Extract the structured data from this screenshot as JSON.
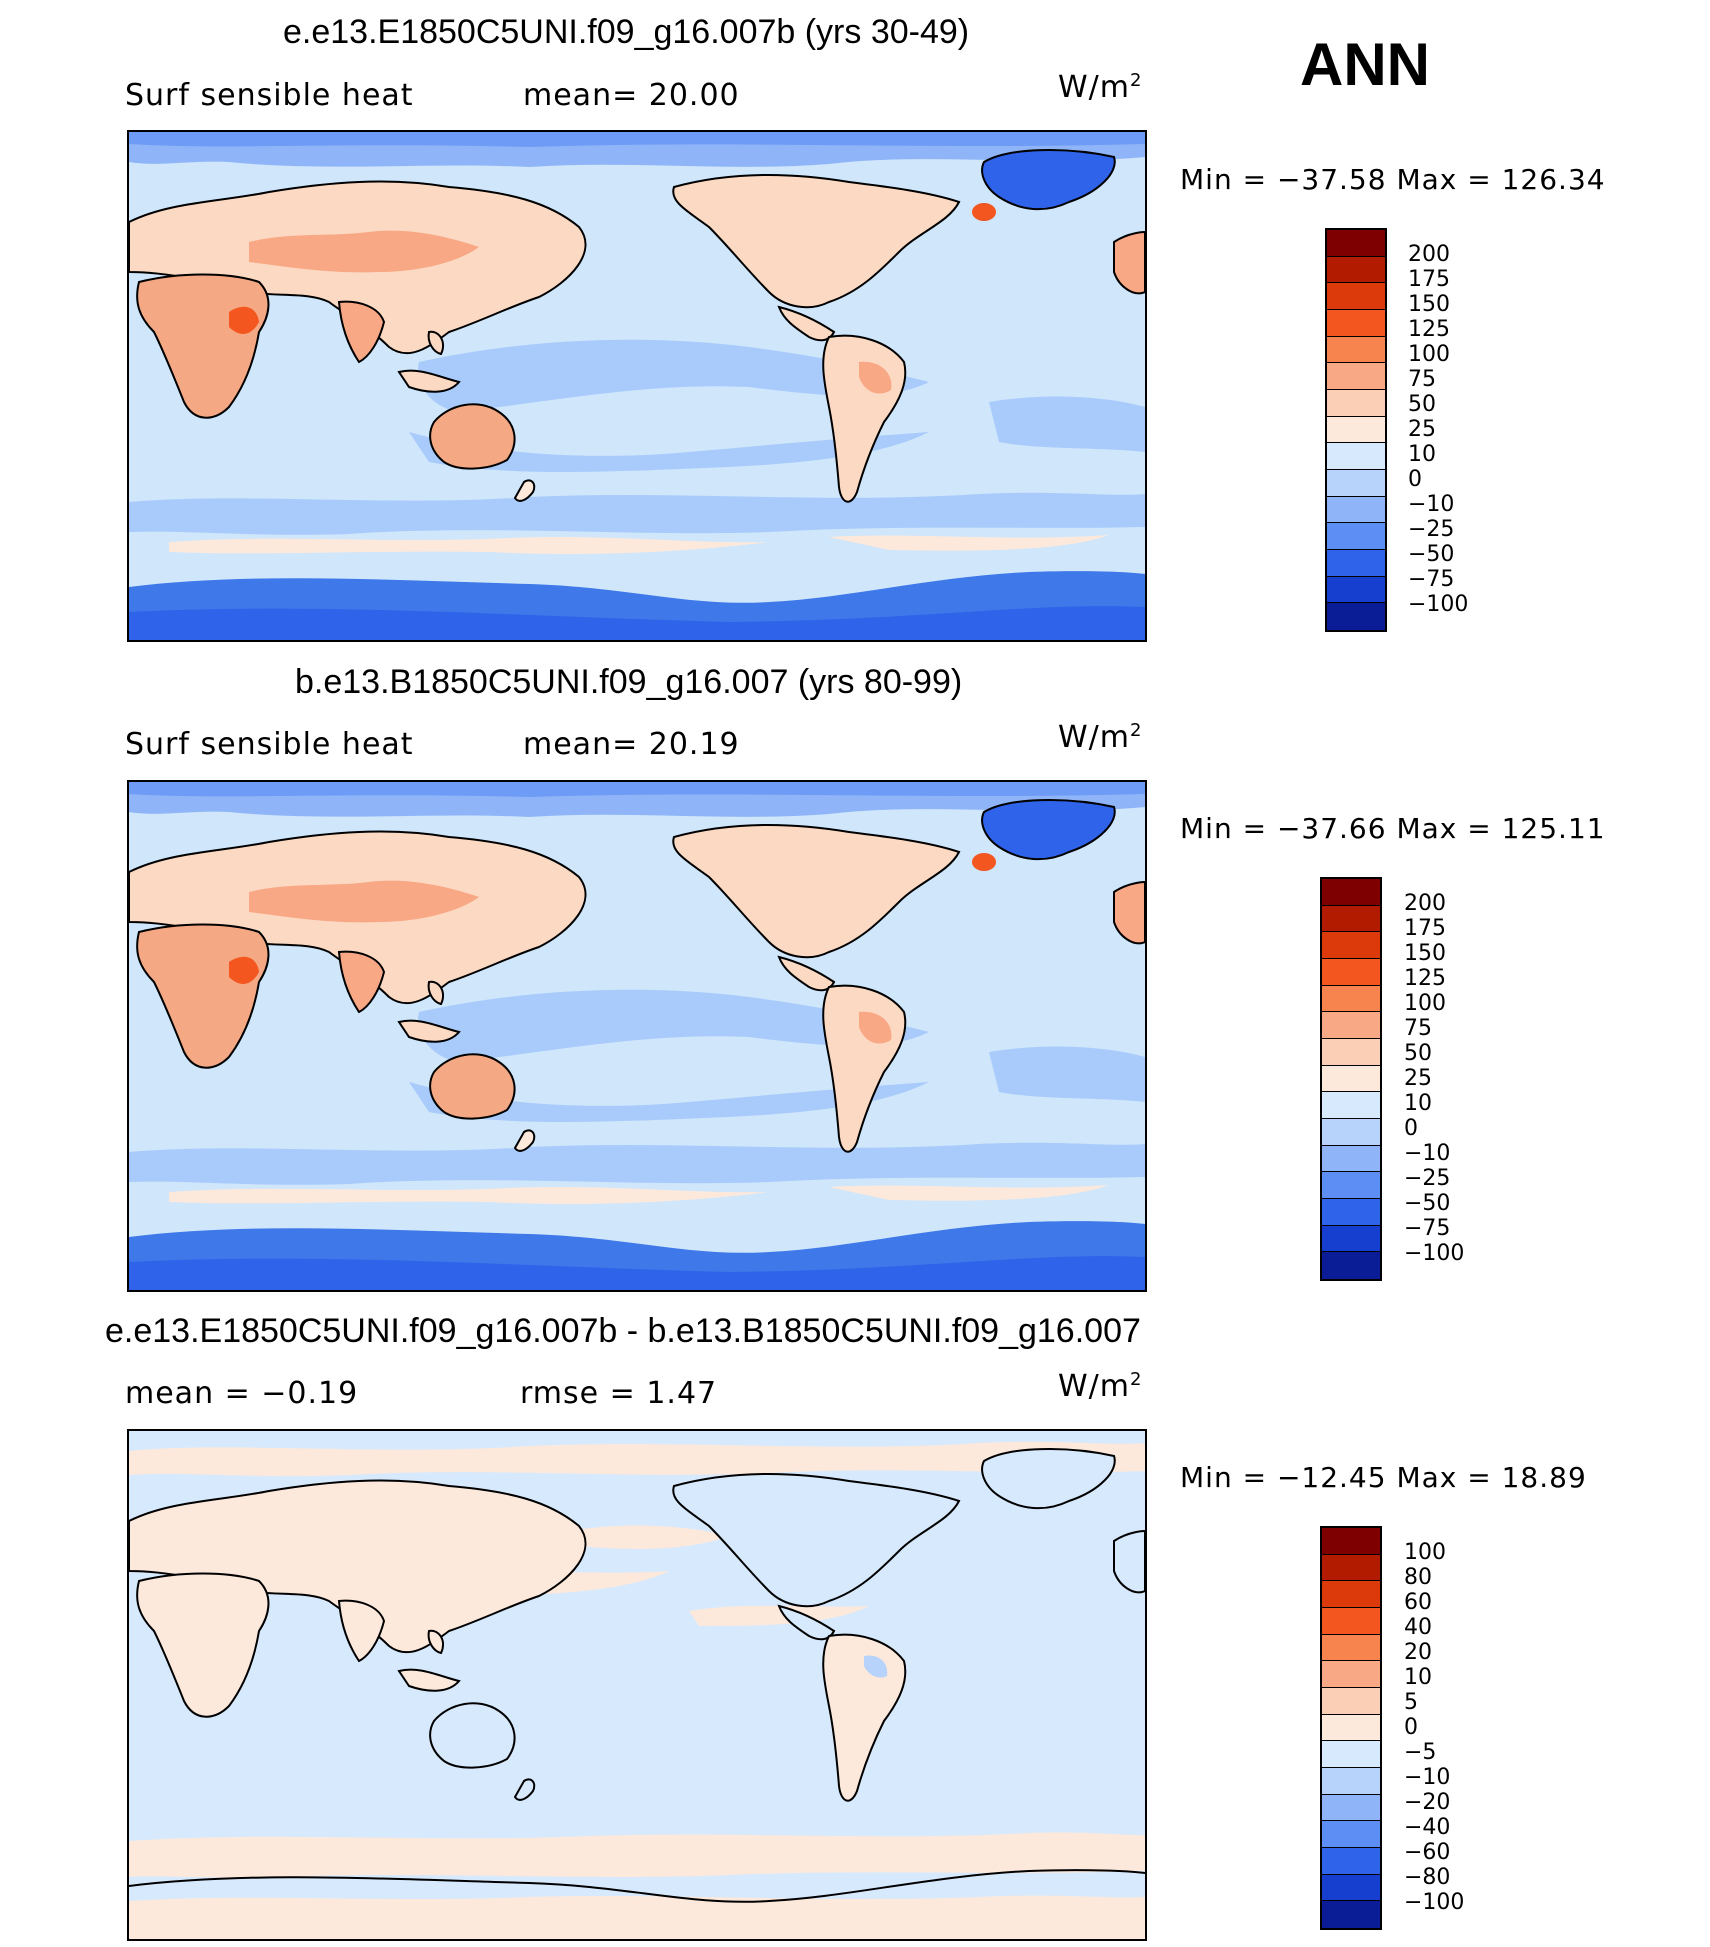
{
  "season": "ANN",
  "panels": [
    {
      "title": "e.e13.E1850C5UNI.f09_g16.007b (yrs 30-49)",
      "variable": "Surf  sensible  heat",
      "stat1": "mean=   20.00",
      "stat2": "",
      "units": "W/m",
      "units_sup": "2",
      "minmax": "Min  =  −37.58  Max  =  126.34",
      "colorbar_labels": [
        "200",
        "175",
        "150",
        "125",
        "100",
        "75",
        "50",
        "25",
        "10",
        "0",
        "−10",
        "−25",
        "−50",
        "−75",
        "−100"
      ]
    },
    {
      "title": "b.e13.B1850C5UNI.f09_g16.007 (yrs 80-99)",
      "variable": "Surf  sensible  heat",
      "stat1": "mean=   20.19",
      "stat2": "",
      "units": "W/m",
      "units_sup": "2",
      "minmax": "Min  =  −37.66  Max  =  125.11",
      "colorbar_labels": [
        "200",
        "175",
        "150",
        "125",
        "100",
        "75",
        "50",
        "25",
        "10",
        "0",
        "−10",
        "−25",
        "−50",
        "−75",
        "−100"
      ]
    },
    {
      "title": "e.e13.E1850C5UNI.f09_g16.007b - b.e13.B1850C5UNI.f09_g16.007",
      "variable": "mean  =    −0.19",
      "stat1": "rmse  =     1.47",
      "stat2": "",
      "units": "W/m",
      "units_sup": "2",
      "minmax": "Min  =  −12.45  Max  =    18.89",
      "colorbar_labels": [
        "100",
        "80",
        "60",
        "40",
        "20",
        "10",
        "5",
        "0",
        "−5",
        "−10",
        "−20",
        "−40",
        "−60",
        "−80",
        "−100"
      ]
    }
  ],
  "colors": {
    "ocean_pos": "#cfe6fb",
    "ocean_neg": "#a9cbfb",
    "land_warm": "#f4a884",
    "land_light": "#fbd9c3",
    "ice_dark": "#3f78e8",
    "ice_mid": "#7aa5f6",
    "colorbar": [
      "#7f0000",
      "#b31b00",
      "#dc3a0a",
      "#f3561f",
      "#f7844f",
      "#f9a885",
      "#fbcfb6",
      "#fde9dc",
      "#d7e9fc",
      "#b7d3fb",
      "#8fb5f8",
      "#5c8ef3",
      "#2f63ea",
      "#173fcf",
      "#0a1d97"
    ]
  }
}
